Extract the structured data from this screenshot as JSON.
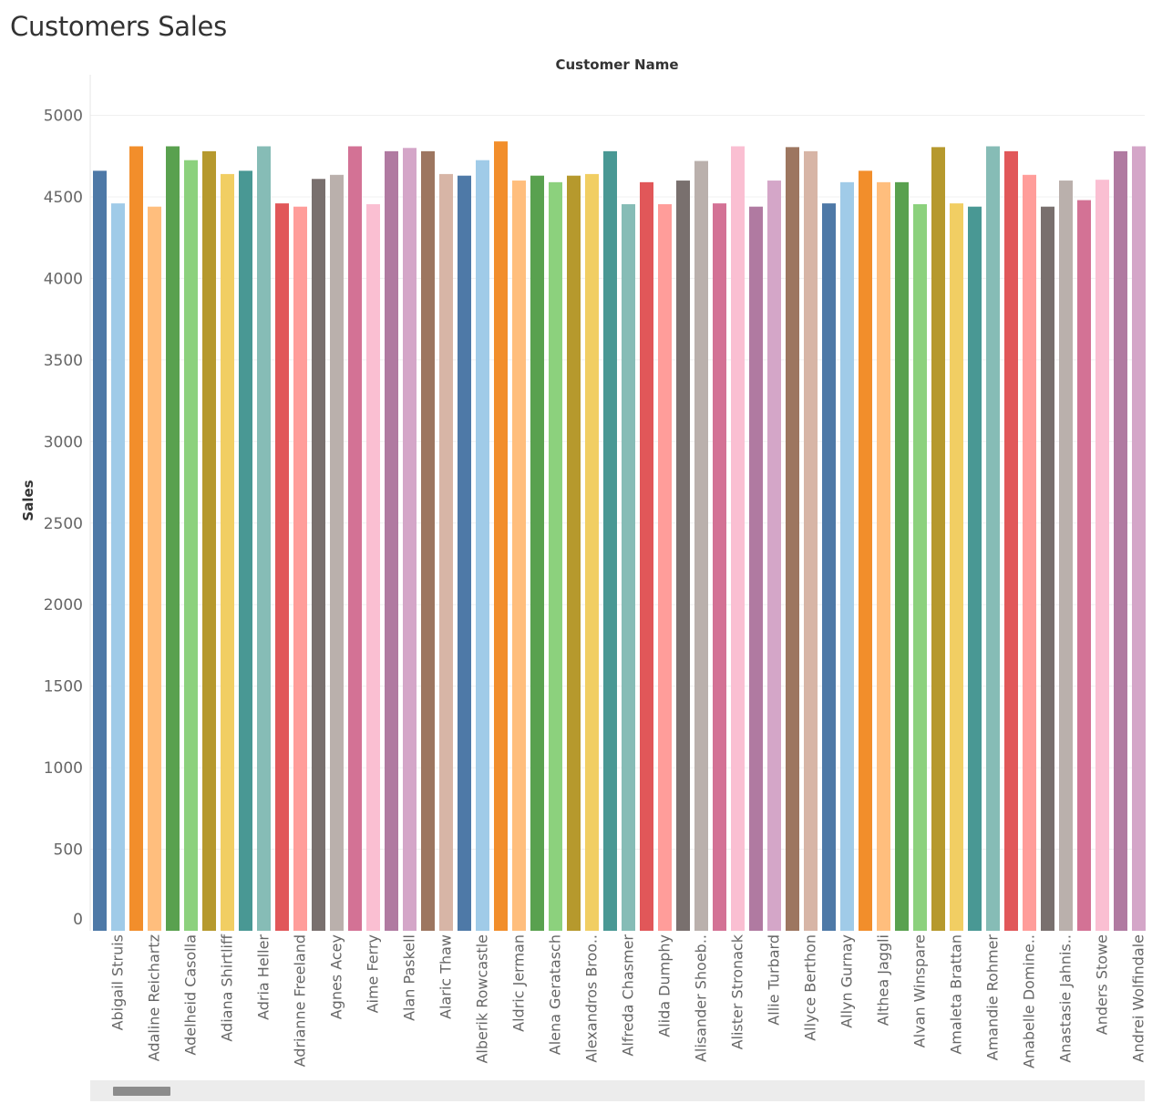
{
  "title": "Customers Sales",
  "chart_data": {
    "type": "bar",
    "column_header": "Customer Name",
    "ylabel": "Sales",
    "ylim": [
      0,
      5000
    ],
    "yticks": [
      0,
      500,
      1000,
      1500,
      2000,
      2500,
      3000,
      3500,
      4000,
      4500,
      5000
    ],
    "grid": true,
    "categories": [
      "",
      "Abigail Struis",
      "",
      "Adaline Reichartz",
      "",
      "Adelheid Casolla",
      "",
      "Adiana Shirtliff",
      "",
      "Adria Heller",
      "",
      "Adrianne Freeland",
      "",
      "Agnes Acey",
      "",
      "Aime Ferry",
      "",
      "Alan Paskell",
      "",
      "Alaric Thaw",
      "",
      "Alberik Rowcastle",
      "",
      "Aldric Jerman",
      "",
      "Alena Geratasch",
      "",
      "Alexandros Broo..",
      "",
      "Alfreda Chasmer",
      "",
      "Alida Dumphy",
      "",
      "Alisander Shoeb..",
      "",
      "Alister Stronack",
      "",
      "Allie Turbard",
      "",
      "Allyce Berthon",
      "",
      "Allyn Gurnay",
      "",
      "Althea Jaggli",
      "",
      "Alvan Winspare",
      "",
      "Amaleta Brattan",
      "",
      "Amandie Rohmer",
      "",
      "Anabelle Domine..",
      "",
      "Anastasie Jahnis..",
      "",
      "Anders Stowe",
      "",
      "Andrei Wolfindale"
    ],
    "values": [
      4660,
      4460,
      4810,
      4440,
      4810,
      4725,
      4780,
      4640,
      4660,
      4810,
      4460,
      4440,
      4610,
      4635,
      4810,
      4455,
      4780,
      4800,
      4780,
      4640,
      4630,
      4725,
      4840,
      4600,
      4630,
      4590,
      4630,
      4640,
      4780,
      4455,
      4590,
      4455,
      4600,
      4720,
      4460,
      4810,
      4440,
      4600,
      4805,
      4780,
      4460,
      4590,
      4660,
      4590,
      4590,
      4455,
      4805,
      4460,
      4440,
      4810,
      4780,
      4635,
      4440,
      4600,
      4480,
      4605,
      4780,
      4810
    ],
    "colors": [
      "#4e79a7",
      "#a0cbe8",
      "#f28e2b",
      "#ffbe7d",
      "#59a14f",
      "#8cd17d",
      "#b6992d",
      "#f1ce63",
      "#499894",
      "#86bcb6",
      "#e15759",
      "#ff9d9a",
      "#79706e",
      "#bab0ac",
      "#d37295",
      "#fabfd2",
      "#b07aa1",
      "#d4a6c8",
      "#9d7660",
      "#d7b5a6"
    ]
  }
}
